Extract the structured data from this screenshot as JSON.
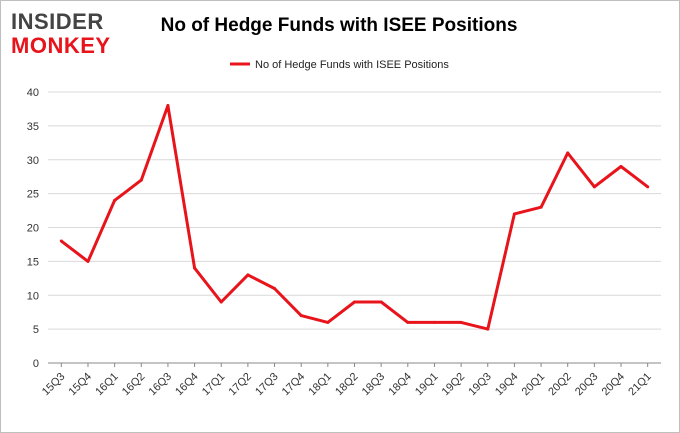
{
  "brand": {
    "line1": "INSIDER",
    "line2": "MONKEY"
  },
  "colors": {
    "series": "#e8141b",
    "grid": "#d9d9d9",
    "axis": "#888888",
    "brand_dark": "#444444",
    "brand_red": "#e8141b"
  },
  "chart_data": {
    "type": "line",
    "title": "No of Hedge Funds with ISEE Positions",
    "xlabel": "",
    "ylabel": "",
    "ylim": [
      0,
      40
    ],
    "yticks": [
      0,
      5,
      10,
      15,
      20,
      25,
      30,
      35,
      40
    ],
    "grid": true,
    "legend_position": "top-center",
    "categories": [
      "15Q3",
      "15Q4",
      "16Q1",
      "16Q2",
      "16Q3",
      "16Q4",
      "17Q1",
      "17Q2",
      "17Q3",
      "17Q4",
      "18Q1",
      "18Q2",
      "18Q3",
      "18Q4",
      "19Q1",
      "19Q2",
      "19Q3",
      "19Q4",
      "20Q1",
      "20Q2",
      "20Q3",
      "20Q4",
      "21Q1"
    ],
    "series": [
      {
        "name": "No of Hedge Funds with ISEE Positions",
        "values": [
          18,
          15,
          24,
          27,
          38,
          14,
          9,
          13,
          11,
          7,
          6,
          9,
          9,
          6,
          6,
          6,
          5,
          22,
          23,
          31,
          26,
          29,
          26
        ]
      }
    ]
  }
}
